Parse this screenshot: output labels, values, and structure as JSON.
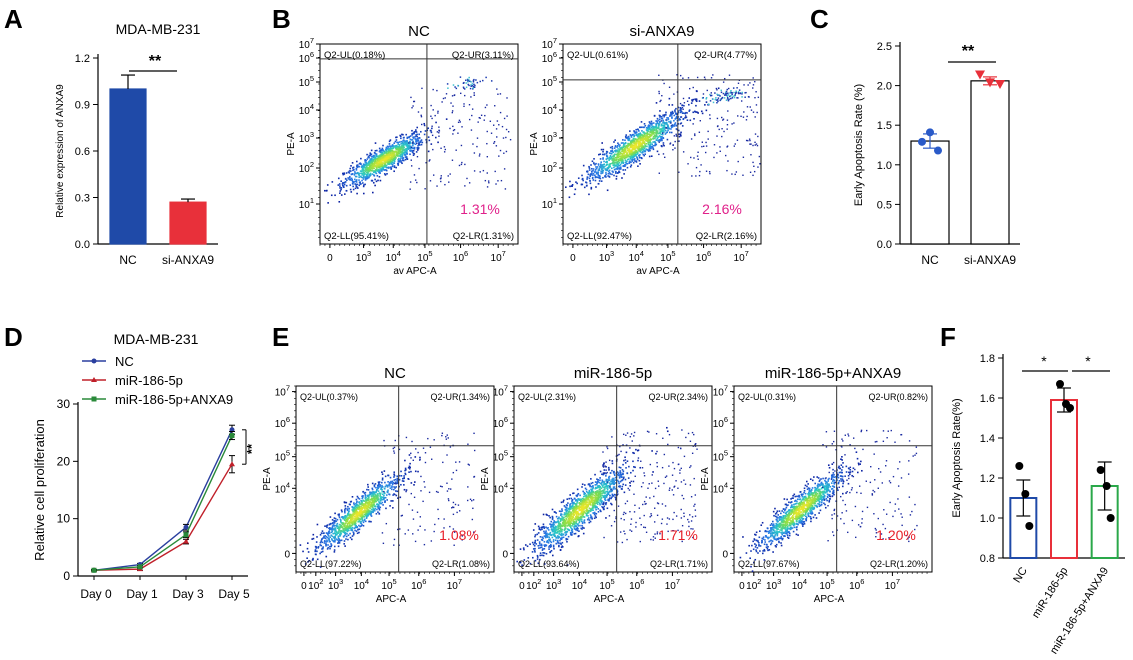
{
  "panel_labels": [
    "A",
    "B",
    "C",
    "D",
    "E",
    "F"
  ],
  "chart_data": [
    {
      "panel": "A",
      "type": "bar",
      "title": "MDA-MB-231",
      "xlabel": "",
      "ylabel": "Relative expression of ANXA9",
      "categories": [
        "NC",
        "si-ANXA9"
      ],
      "values": [
        1.0,
        0.27
      ],
      "errors": [
        0.09,
        0.02
      ],
      "colors": [
        "#1f4aa8",
        "#e8303a"
      ],
      "ylim": [
        0,
        1.2
      ],
      "yticks": [
        "0.0",
        "0.3",
        "0.6",
        "0.9",
        "1.2"
      ],
      "significance": "**"
    },
    {
      "panel": "B",
      "type": "scatter",
      "subtype": "flow-cytometry",
      "plots": [
        {
          "title": "NC",
          "xlabel": "av APC-A",
          "ylabel": "PE-A",
          "quadrants": {
            "ul": "Q2-UL(0.18%)",
            "ur": "Q2-UR(3.11%)",
            "ll": "Q2-LL(95.41%)",
            "lr": "Q2-LR(1.31%)"
          },
          "highlight": "1.31%",
          "highlight_color": "#e0208a",
          "gate": [
            4.9,
            6.7
          ],
          "x_ticks": [
            "0",
            "10^3",
            "10^4",
            "10^5",
            "10^6",
            "10^7"
          ],
          "y_ticks": [
            "10^1",
            "10^2",
            "10^3",
            "10^4",
            "10^5",
            "10^6",
            "10^7"
          ]
        },
        {
          "title": "si-ANXA9",
          "xlabel": "av APC-A",
          "ylabel": "PE-A",
          "quadrants": {
            "ul": "Q2-UL(0.61%)",
            "ur": "Q2-UR(4.77%)",
            "ll": "Q2-LL(92.47%)",
            "lr": "Q2-LR(2.16%)"
          },
          "highlight": "2.16%",
          "highlight_color": "#e0208a",
          "gate": [
            5.1,
            6.0
          ],
          "x_ticks": [
            "0",
            "10^3",
            "10^4",
            "10^5",
            "10^6",
            "10^7"
          ],
          "y_ticks": [
            "10^1",
            "10^2",
            "10^3",
            "10^4",
            "10^5",
            "10^6",
            "10^7"
          ]
        }
      ]
    },
    {
      "panel": "C",
      "type": "bar",
      "title": "",
      "xlabel": "",
      "ylabel": "Early Apoptosis Rate (%)",
      "categories": [
        "NC",
        "si-ANXA9"
      ],
      "values": [
        1.3,
        2.06
      ],
      "errors": [
        0.09,
        0.05
      ],
      "points": [
        [
          1.41,
          1.29,
          1.18
        ],
        [
          2.14,
          2.04,
          2.02
        ]
      ],
      "point_colors": [
        "#2a5ac8",
        "#e8303a"
      ],
      "ylim": [
        0,
        2.5
      ],
      "yticks": [
        "0.0",
        "0.5",
        "1.0",
        "1.5",
        "2.0",
        "2.5"
      ],
      "significance": "**"
    },
    {
      "panel": "D",
      "type": "line",
      "title": "MDA-MB-231",
      "xlabel": "",
      "ylabel": "Relative cell proliferation",
      "categories": [
        "Day 0",
        "Day 1",
        "Day 3",
        "Day 5"
      ],
      "series": [
        {
          "name": "NC",
          "color": "#2a3f9f",
          "values": [
            1,
            2,
            8.5,
            25.5
          ],
          "errors": [
            0.1,
            0.2,
            0.5,
            0.8
          ]
        },
        {
          "name": "miR-186-5p",
          "color": "#c0202a",
          "values": [
            1,
            1.2,
            6,
            19.5
          ],
          "errors": [
            0.1,
            0.2,
            0.4,
            1.5
          ]
        },
        {
          "name": "miR-186-5p+ANXA9",
          "color": "#2a8a3a",
          "values": [
            1,
            1.6,
            7.2,
            24.5
          ],
          "errors": [
            0.1,
            0.2,
            0.5,
            0.7
          ]
        }
      ],
      "ylim": [
        0,
        30
      ],
      "yticks": [
        "0",
        "10",
        "20",
        "30"
      ],
      "significance": "**"
    },
    {
      "panel": "E",
      "type": "scatter",
      "subtype": "flow-cytometry",
      "plots": [
        {
          "title": "NC",
          "xlabel": "APC-A",
          "ylabel": "PE-A",
          "quadrants": {
            "ul": "Q2-UL(0.37%)",
            "ur": "Q2-UR(1.34%)",
            "ll": "Q2-LL(97.22%)",
            "lr": "Q2-LR(1.08%)"
          },
          "highlight": "1.08%",
          "highlight_color": "#e8202a",
          "gate": [
            4.6,
            5.0
          ],
          "x_ticks": [
            "0",
            "10^2",
            "10^3",
            "10^4",
            "10^5",
            "10^6",
            "10^7"
          ],
          "y_ticks": [
            "0",
            "10^4",
            "10^5",
            "10^6",
            "10^7"
          ]
        },
        {
          "title": "miR-186-5p",
          "xlabel": "APC-A",
          "ylabel": "PE-A",
          "quadrants": {
            "ul": "Q2-UL(2.31%)",
            "ur": "Q2-UR(2.34%)",
            "ll": "Q2-LL(93.64%)",
            "lr": "Q2-LR(1.71%)"
          },
          "highlight": "1.71%",
          "highlight_color": "#e8202a",
          "gate": [
            4.6,
            5.0
          ],
          "x_ticks": [
            "0",
            "10^2",
            "10^3",
            "10^4",
            "10^5",
            "10^6",
            "10^7"
          ],
          "y_ticks": [
            "0",
            "10^4",
            "10^5",
            "10^6",
            "10^7"
          ]
        },
        {
          "title": "miR-186-5p+ANXA9",
          "xlabel": "APC-A",
          "ylabel": "PE-A",
          "quadrants": {
            "ul": "Q2-UL(0.31%)",
            "ur": "Q2-UR(0.82%)",
            "ll": "Q2-LL(97.67%)",
            "lr": "Q2-LR(1.20%)"
          },
          "highlight": "1.20%",
          "highlight_color": "#e8202a",
          "gate": [
            4.6,
            5.0
          ],
          "x_ticks": [
            "0",
            "10^2",
            "10^3",
            "10^4",
            "10^5",
            "10^6",
            "10^7"
          ],
          "y_ticks": [
            "0",
            "10^4",
            "10^5",
            "10^6",
            "10^7"
          ]
        }
      ]
    },
    {
      "panel": "F",
      "type": "bar",
      "title": "",
      "xlabel": "",
      "ylabel": "Early Apoptosis Rate(%)",
      "categories": [
        "NC",
        "miR-186-5p",
        "miR-186-5p+ANXA9"
      ],
      "values": [
        1.1,
        1.59,
        1.16
      ],
      "errors": [
        0.09,
        0.06,
        0.12
      ],
      "points": [
        [
          1.26,
          1.12,
          0.96
        ],
        [
          1.67,
          1.57,
          1.55
        ],
        [
          1.24,
          1.16,
          1.0
        ]
      ],
      "edge_colors": [
        "#1f4aa8",
        "#e8303a",
        "#2aa84a"
      ],
      "ylim": [
        0.8,
        1.8
      ],
      "yticks": [
        "0.8",
        "1.0",
        "1.2",
        "1.4",
        "1.6",
        "1.8"
      ],
      "significance": [
        "*",
        "*"
      ]
    }
  ]
}
